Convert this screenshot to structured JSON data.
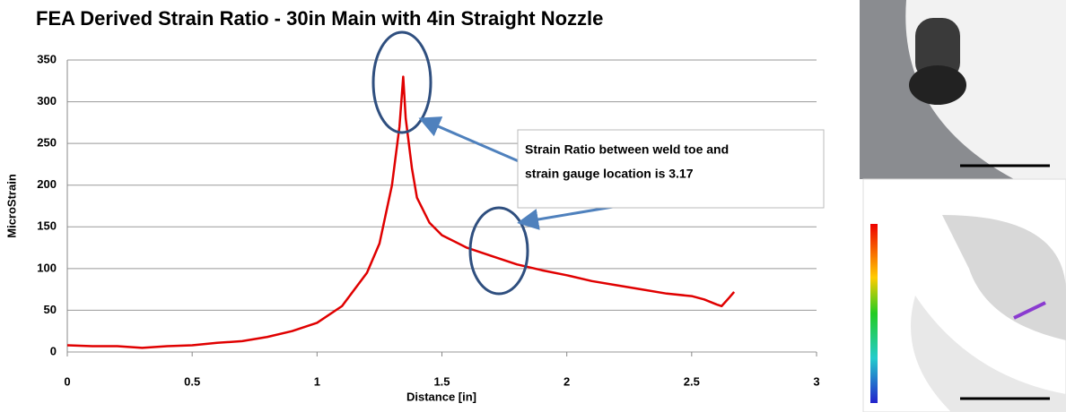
{
  "chart_data": {
    "type": "line",
    "title": "FEA Derived Strain Ratio - 30in Main with 4in Straight Nozzle",
    "x_label": "Distance [in]",
    "y_label": "MicroStrain",
    "annotation": [
      "Strain Ratio between weld toe and",
      "strain gauge location is  3.17"
    ],
    "x": [
      0,
      0.1,
      0.2,
      0.3,
      0.4,
      0.5,
      0.6,
      0.7,
      0.8,
      0.9,
      1.0,
      1.1,
      1.2,
      1.25,
      1.3,
      1.33,
      1.345,
      1.355,
      1.38,
      1.4,
      1.45,
      1.5,
      1.6,
      1.7,
      1.8,
      1.9,
      2.0,
      2.1,
      2.2,
      2.3,
      2.4,
      2.5,
      2.55,
      2.6,
      2.62,
      2.65,
      2.67
    ],
    "values": [
      8,
      7,
      7,
      5,
      7,
      8,
      11,
      13,
      18,
      25,
      35,
      55,
      95,
      130,
      200,
      270,
      330,
      280,
      220,
      185,
      155,
      140,
      125,
      115,
      105,
      98,
      92,
      85,
      80,
      75,
      70,
      67,
      63,
      57,
      55,
      65,
      72
    ],
    "color": "#e00000",
    "xlim": [
      0,
      3
    ],
    "xticks": [
      0,
      0.5,
      1,
      1.5,
      2,
      2.5,
      3
    ],
    "ylim": [
      0,
      350
    ],
    "yticks": [
      0,
      50,
      100,
      150,
      200,
      250,
      300,
      350
    ],
    "grid": true
  }
}
